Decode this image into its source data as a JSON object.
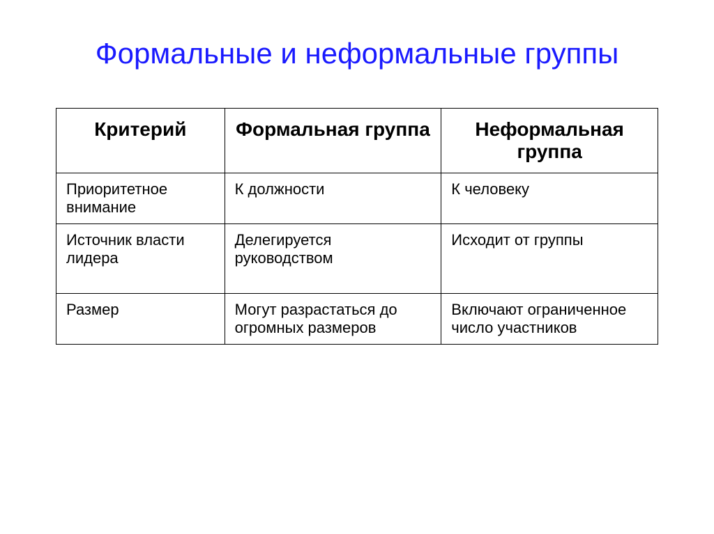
{
  "title": "Формальные и неформальные группы",
  "table": {
    "headers": {
      "criterion": "Критерий",
      "formal": "Формальная группа",
      "informal": "Неформальная группа"
    },
    "rows": [
      {
        "criterion": "Приоритетное внимание",
        "formal": "К должности",
        "informal": "К человеку"
      },
      {
        "criterion": "Источник власти лидера",
        "formal": "Делегируется руководством",
        "informal": "Исходит от группы"
      },
      {
        "criterion": "Размер",
        "formal": "Могут разрастаться до огромных размеров",
        "informal": "Включают ограниченное число участников"
      }
    ]
  },
  "styling": {
    "title_color": "#1a1aff",
    "title_fontsize": 42,
    "header_fontsize": 28,
    "cell_fontsize": 22,
    "border_color": "#000000",
    "background_color": "#ffffff",
    "text_color": "#000000",
    "column_widths": [
      "28%",
      "36%",
      "36%"
    ]
  }
}
